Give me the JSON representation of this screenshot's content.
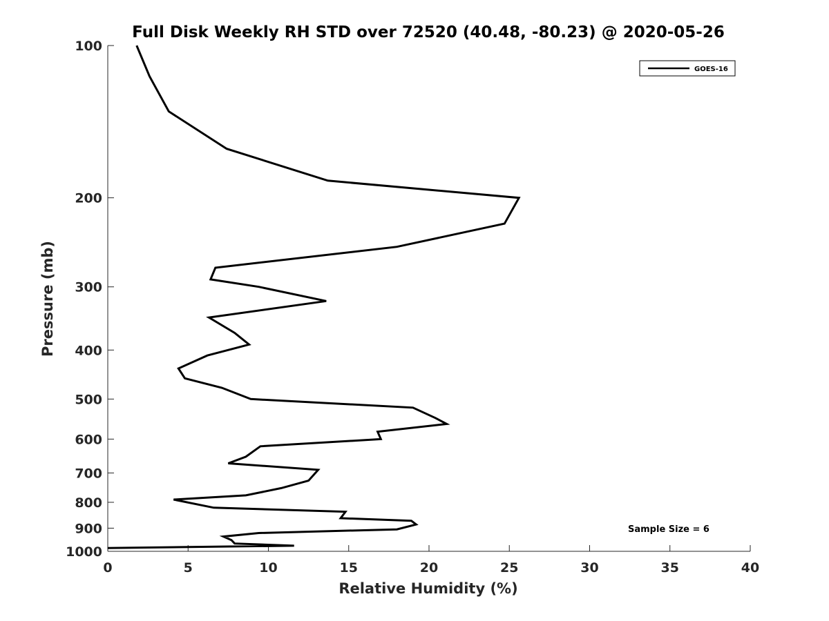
{
  "chart_data": {
    "type": "line",
    "title": "Full Disk Weekly RH STD over 72520 (40.48, -80.23) @ 2020-05-26",
    "xlabel": "Relative Humidity (%)",
    "ylabel": "Pressure (mb)",
    "xlim": [
      0,
      40
    ],
    "ylim": [
      100,
      1000
    ],
    "y_scale": "log",
    "y_reversed": true,
    "x_ticks": [
      "0",
      "5",
      "10",
      "15",
      "20",
      "25",
      "30",
      "35",
      "40"
    ],
    "y_ticks": [
      "100",
      "200",
      "300",
      "400",
      "500",
      "600",
      "700",
      "800",
      "900",
      "1000"
    ],
    "grid": false,
    "legend_position": "top-right",
    "annotation": "Sample Size = 6",
    "series": [
      {
        "name": "GOES-16",
        "color": "#000000",
        "x": [
          1.8,
          2.6,
          3.8,
          7.4,
          13.7,
          25.6,
          24.7,
          18.0,
          6.7,
          6.4,
          9.4,
          13.6,
          6.3,
          7.9,
          8.8,
          6.2,
          4.4,
          4.8,
          7.1,
          8.9,
          19.0,
          20.4,
          21.1,
          16.8,
          17.0,
          9.5,
          8.6,
          7.5,
          13.1,
          12.5,
          10.8,
          8.6,
          4.1,
          6.6,
          14.8,
          14.5,
          18.9,
          19.2,
          18.0,
          9.4,
          7.2,
          7.7,
          7.9,
          11.6,
          0.0
        ],
        "y": [
          100,
          115,
          135,
          160,
          185,
          200,
          225,
          250,
          275,
          290,
          300,
          320,
          345,
          370,
          390,
          410,
          435,
          455,
          475,
          500,
          520,
          545,
          560,
          580,
          600,
          620,
          650,
          670,
          690,
          725,
          750,
          775,
          790,
          820,
          835,
          860,
          870,
          885,
          905,
          920,
          935,
          950,
          965,
          975,
          985
        ]
      }
    ]
  }
}
